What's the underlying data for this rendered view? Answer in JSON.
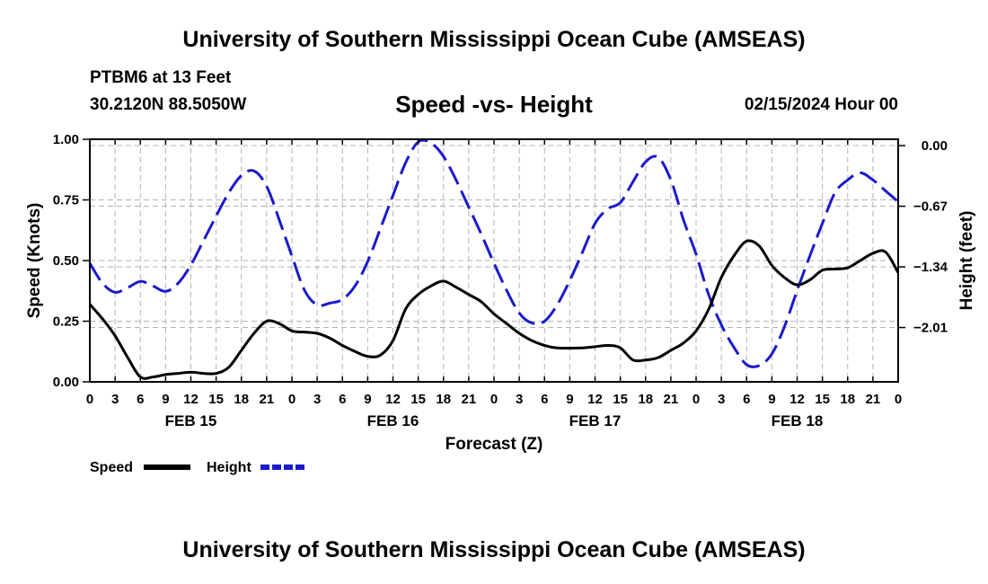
{
  "header": {
    "title": "University of Southern Mississippi Ocean Cube (AMSEAS)",
    "station": "PTBM6 at 13 Feet",
    "coords": "30.2120N  88.5050W",
    "chart_title": "Speed -vs- Height",
    "date": "02/15/2024 Hour 00"
  },
  "footer": {
    "title": "University of Southern Mississippi Ocean Cube (AMSEAS)"
  },
  "colors": {
    "speed": "#000000",
    "height": "#1a1acc",
    "grid": "#b4b4b4"
  },
  "chart_data": {
    "type": "line",
    "title": "Speed -vs- Height",
    "xlabel": "Forecast (Z)",
    "ylabel_left": "Speed (Knots)",
    "ylabel_right": "Height (feet)",
    "xlim": [
      0,
      96
    ],
    "ylim_left": [
      0,
      1.0
    ],
    "ylim_right": [
      -2.61,
      0.07
    ],
    "left_ticks": [
      {
        "v": 0,
        "label": "0.00"
      },
      {
        "v": 0.25,
        "label": "0.25"
      },
      {
        "v": 0.5,
        "label": "0.50"
      },
      {
        "v": 0.75,
        "label": "0.75"
      },
      {
        "v": 1.0,
        "label": "1.00"
      }
    ],
    "right_ticks": [
      {
        "v": 0,
        "label": "0.00"
      },
      {
        "v": -0.67,
        "label": "-0.67"
      },
      {
        "v": -1.34,
        "label": "-1.34"
      },
      {
        "v": -2.01,
        "label": "-2.01"
      }
    ],
    "x_ticks": [
      "0",
      "3",
      "6",
      "9",
      "12",
      "15",
      "18",
      "21",
      "0",
      "3",
      "6",
      "9",
      "12",
      "15",
      "18",
      "21",
      "0",
      "3",
      "6",
      "9",
      "12",
      "15",
      "18",
      "21",
      "0",
      "3",
      "6",
      "9",
      "12",
      "15",
      "18",
      "21",
      "0"
    ],
    "day_labels": [
      {
        "hour": 12,
        "label": "FEB 15"
      },
      {
        "hour": 36,
        "label": "FEB 16"
      },
      {
        "hour": 60,
        "label": "FEB 17"
      },
      {
        "hour": 84,
        "label": "FEB 18"
      }
    ],
    "legend": [
      {
        "name": "Speed",
        "style": "solid"
      },
      {
        "name": "Height",
        "style": "dashed"
      }
    ],
    "series": [
      {
        "name": "Speed",
        "axis": "left",
        "style": "solid",
        "x": [
          0,
          1.5,
          3,
          4.5,
          6,
          7.5,
          9,
          10.5,
          12,
          13.5,
          15,
          16.5,
          18,
          19.5,
          21,
          22.5,
          24,
          25.5,
          27,
          28.5,
          30,
          31.5,
          33,
          34.5,
          36,
          37.5,
          39,
          40.5,
          42,
          43.5,
          45,
          46.5,
          48,
          49.5,
          51,
          52.5,
          54,
          55.5,
          58.5,
          60,
          61.5,
          63,
          64.5,
          66,
          67.5,
          69,
          70.5,
          72,
          73.5,
          75,
          76.5,
          78,
          79.5,
          81,
          82.5,
          84,
          85.5,
          87,
          88.5,
          90,
          91.5,
          93,
          94.5,
          96
        ],
        "y": [
          0.32,
          0.26,
          0.19,
          0.1,
          0.02,
          0.02,
          0.03,
          0.035,
          0.04,
          0.035,
          0.035,
          0.06,
          0.13,
          0.2,
          0.25,
          0.24,
          0.21,
          0.205,
          0.2,
          0.18,
          0.15,
          0.125,
          0.105,
          0.11,
          0.17,
          0.3,
          0.36,
          0.395,
          0.415,
          0.39,
          0.36,
          0.33,
          0.28,
          0.24,
          0.2,
          0.17,
          0.15,
          0.14,
          0.14,
          0.145,
          0.15,
          0.14,
          0.09,
          0.09,
          0.1,
          0.13,
          0.16,
          0.21,
          0.3,
          0.43,
          0.52,
          0.58,
          0.56,
          0.48,
          0.43,
          0.4,
          0.42,
          0.46,
          0.465,
          0.47,
          0.5,
          0.53,
          0.535,
          0.45
        ]
      },
      {
        "name": "Height",
        "axis": "right",
        "style": "dashed",
        "x": [
          0,
          1.5,
          3,
          4.5,
          6,
          7.5,
          9,
          10.5,
          12,
          13.5,
          15,
          16.5,
          18,
          19.5,
          21,
          22.5,
          24,
          25.5,
          27,
          28.5,
          30,
          31.5,
          33,
          34.5,
          36,
          37.5,
          39,
          40.5,
          42,
          43.5,
          45,
          46.5,
          48,
          49.5,
          51,
          52.5,
          54,
          55.5,
          57,
          58.5,
          60,
          61.5,
          63,
          64.5,
          66,
          67.5,
          69,
          70.5,
          72,
          73.5,
          75,
          76.5,
          78,
          79.5,
          81,
          82.5,
          84,
          85.5,
          87,
          88.5,
          90,
          91.5,
          93,
          94.5,
          96
        ],
        "y": [
          -1.3,
          -1.52,
          -1.62,
          -1.57,
          -1.5,
          -1.55,
          -1.61,
          -1.52,
          -1.32,
          -1.05,
          -0.78,
          -0.52,
          -0.33,
          -0.28,
          -0.45,
          -0.82,
          -1.22,
          -1.6,
          -1.76,
          -1.74,
          -1.7,
          -1.55,
          -1.28,
          -0.92,
          -0.55,
          -0.19,
          0.04,
          0.03,
          -0.12,
          -0.38,
          -0.68,
          -0.98,
          -1.3,
          -1.6,
          -1.85,
          -1.96,
          -1.94,
          -1.76,
          -1.49,
          -1.18,
          -0.86,
          -0.7,
          -0.63,
          -0.4,
          -0.18,
          -0.13,
          -0.38,
          -0.82,
          -1.2,
          -1.65,
          -1.98,
          -2.23,
          -2.42,
          -2.43,
          -2.3,
          -2.0,
          -1.6,
          -1.22,
          -0.86,
          -0.52,
          -0.38,
          -0.3,
          -0.38,
          -0.5,
          -0.62
        ]
      }
    ]
  }
}
